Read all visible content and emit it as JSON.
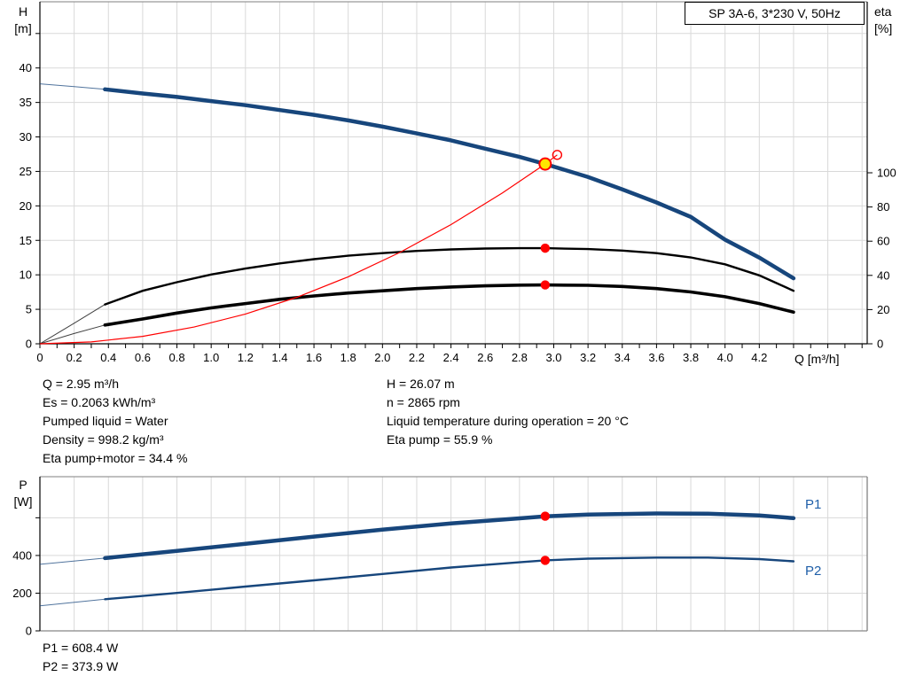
{
  "title_box": "SP 3A-6, 3*230 V, 50Hz",
  "labels": {
    "h_axis_1": "H",
    "h_axis_2": "[m]",
    "eta_axis_1": "eta",
    "eta_axis_2": "[%]",
    "q_axis": "Q [m³/h]",
    "p_axis_1": "P",
    "p_axis_2": "[W]",
    "p1_curve": "P1",
    "p2_curve": "P2"
  },
  "info": {
    "left": [
      "Q = 2.95 m³/h",
      "Es = 0.2063 kWh/m³",
      "Pumped liquid = Water",
      "Density = 998.2 kg/m³",
      "Eta pump+motor = 34.4 %"
    ],
    "right": [
      "H = 26.07 m",
      "n = 2865 rpm",
      "Liquid temperature during operation = 20 °C",
      "Eta pump = 55.9 %"
    ],
    "power": [
      "P1 = 608.4 W",
      "P2 = 373.9 W"
    ]
  },
  "colors": {
    "curve_blue": "#17467C",
    "curve_black": "#000000",
    "curve_red": "#FF0000",
    "marker_yellow": "#FFE600",
    "label_blue": "#1f5fa8",
    "grid": "#d9d9d9"
  },
  "chart_data": [
    {
      "type": "line",
      "title": "SP 3A-6, 3*230 V, 50Hz",
      "xlabel": "Q [m³/h]",
      "ylabel_left": "H [m]",
      "ylabel_right": "eta [%]",
      "x_range": [
        0,
        4.83
      ],
      "x_grid_step": 0.2,
      "x_grid_max": 4.8,
      "x_minor_step": 0.1,
      "x_label_step": 0.2,
      "x_tick_labels": [
        "0",
        "0.2",
        "0.4",
        "0.6",
        "0.8",
        "1.0",
        "1.2",
        "1.4",
        "1.6",
        "1.8",
        "2.0",
        "2.2",
        "2.4",
        "2.6",
        "2.8",
        "3.0",
        "3.2",
        "3.4",
        "3.6",
        "3.8",
        "4.0",
        "4.2"
      ],
      "y_left": {
        "range": [
          0,
          49.6
        ],
        "grid": [
          5,
          10,
          15,
          20,
          25,
          30,
          35,
          40,
          45
        ],
        "ticks": [
          0,
          5,
          10,
          15,
          20,
          25,
          30,
          35,
          40,
          45
        ],
        "label_step": 5,
        "labels": [
          "0",
          "5",
          "10",
          "15",
          "20",
          "25",
          "30",
          "35",
          "40"
        ]
      },
      "y_right": {
        "range": [
          0,
          200
        ],
        "ticks": [
          0,
          20,
          40,
          60,
          80,
          100
        ],
        "label_step": 20,
        "labels": [
          "0",
          "20",
          "40",
          "60",
          "80",
          "100"
        ]
      },
      "series": [
        {
          "name": "pump-hq-curve",
          "axis": "left",
          "color": "#17467C",
          "width": 4.5,
          "thin_until": 0.38,
          "points": [
            [
              0,
              37.7
            ],
            [
              0.2,
              37.3
            ],
            [
              0.38,
              36.9
            ],
            [
              0.6,
              36.3
            ],
            [
              0.8,
              35.8
            ],
            [
              1.0,
              35.2
            ],
            [
              1.2,
              34.6
            ],
            [
              1.4,
              33.9
            ],
            [
              1.6,
              33.2
            ],
            [
              1.8,
              32.4
            ],
            [
              2.0,
              31.5
            ],
            [
              2.2,
              30.5
            ],
            [
              2.4,
              29.5
            ],
            [
              2.6,
              28.3
            ],
            [
              2.8,
              27.1
            ],
            [
              2.95,
              26.07
            ],
            [
              3.2,
              24.2
            ],
            [
              3.4,
              22.4
            ],
            [
              3.6,
              20.5
            ],
            [
              3.8,
              18.4
            ],
            [
              4.0,
              15.1
            ],
            [
              4.2,
              12.5
            ],
            [
              4.4,
              9.5
            ]
          ]
        },
        {
          "name": "eta-pump-curve",
          "axis": "right",
          "color": "#000000",
          "width": 2.4,
          "thin_until": 0.38,
          "points": [
            [
              0,
              0
            ],
            [
              0.2,
              12
            ],
            [
              0.38,
              23
            ],
            [
              0.6,
              31
            ],
            [
              0.8,
              36
            ],
            [
              1.0,
              40.5
            ],
            [
              1.2,
              44
            ],
            [
              1.4,
              47
            ],
            [
              1.6,
              49.5
            ],
            [
              1.8,
              51.5
            ],
            [
              2.0,
              53
            ],
            [
              2.2,
              54.3
            ],
            [
              2.4,
              55.2
            ],
            [
              2.6,
              55.7
            ],
            [
              2.8,
              55.9
            ],
            [
              2.95,
              55.9
            ],
            [
              3.2,
              55.4
            ],
            [
              3.4,
              54.5
            ],
            [
              3.6,
              53
            ],
            [
              3.8,
              50.5
            ],
            [
              4.0,
              46.5
            ],
            [
              4.2,
              40
            ],
            [
              4.4,
              31
            ]
          ]
        },
        {
          "name": "eta-pump-motor-curve",
          "axis": "right",
          "color": "#000000",
          "width": 3.6,
          "thin_until": 0.38,
          "points": [
            [
              0,
              0
            ],
            [
              0.2,
              6
            ],
            [
              0.38,
              11
            ],
            [
              0.6,
              14.5
            ],
            [
              0.8,
              18
            ],
            [
              1.0,
              21
            ],
            [
              1.2,
              23.5
            ],
            [
              1.4,
              26
            ],
            [
              1.6,
              28
            ],
            [
              1.8,
              29.7
            ],
            [
              2.0,
              31
            ],
            [
              2.2,
              32.3
            ],
            [
              2.4,
              33.2
            ],
            [
              2.6,
              33.9
            ],
            [
              2.8,
              34.3
            ],
            [
              2.95,
              34.4
            ],
            [
              3.2,
              34.2
            ],
            [
              3.4,
              33.5
            ],
            [
              3.6,
              32.3
            ],
            [
              3.8,
              30.3
            ],
            [
              4.0,
              27.5
            ],
            [
              4.2,
              23.5
            ],
            [
              4.4,
              18.5
            ]
          ]
        },
        {
          "name": "system-resistance-curve",
          "axis": "left",
          "color": "#FF0000",
          "width": 1.2,
          "points": [
            [
              0,
              0
            ],
            [
              0.3,
              0.27
            ],
            [
              0.6,
              1.08
            ],
            [
              0.9,
              2.43
            ],
            [
              1.2,
              4.32
            ],
            [
              1.5,
              6.75
            ],
            [
              1.8,
              9.72
            ],
            [
              2.1,
              13.23
            ],
            [
              2.4,
              17.28
            ],
            [
              2.7,
              21.87
            ],
            [
              2.95,
              26.07
            ],
            [
              3.02,
              27.4
            ]
          ]
        }
      ],
      "markers": [
        {
          "name": "duty-point",
          "axis": "left",
          "x": 2.95,
          "y": 26.07,
          "style": "yellow"
        },
        {
          "name": "requested-duty-point",
          "axis": "left",
          "x": 3.02,
          "y": 27.4,
          "style": "open"
        },
        {
          "name": "eta-pump-point",
          "axis": "right",
          "x": 2.95,
          "y": 55.9,
          "style": "red"
        },
        {
          "name": "eta-pump-motor-point",
          "axis": "right",
          "x": 2.95,
          "y": 34.4,
          "style": "red"
        }
      ]
    },
    {
      "type": "line",
      "title": "",
      "xlabel": "",
      "ylabel_left": "P [W]",
      "x_range": [
        0,
        4.83
      ],
      "x_grid_step": 0.2,
      "x_grid_max": 4.8,
      "y_left": {
        "range": [
          0,
          818
        ],
        "grid": [
          200,
          400,
          600
        ],
        "ticks": [
          0,
          200,
          400,
          600
        ],
        "label_step": 200,
        "labels": [
          "0",
          "200",
          "400"
        ]
      },
      "series": [
        {
          "name": "p1-power-curve",
          "color": "#17467C",
          "width": 4.5,
          "thin_until": 0.38,
          "points": [
            [
              0,
              353
            ],
            [
              0.38,
              386
            ],
            [
              0.8,
              424
            ],
            [
              1.2,
              462
            ],
            [
              1.6,
              500
            ],
            [
              2.0,
              537
            ],
            [
              2.4,
              570
            ],
            [
              2.8,
              597
            ],
            [
              2.95,
              608
            ],
            [
              3.2,
              617
            ],
            [
              3.6,
              623
            ],
            [
              3.9,
              622
            ],
            [
              4.2,
              612
            ],
            [
              4.4,
              598
            ]
          ]
        },
        {
          "name": "p2-power-curve",
          "color": "#17467C",
          "width": 2.4,
          "thin_until": 0.38,
          "points": [
            [
              0,
              133
            ],
            [
              0.38,
              168
            ],
            [
              0.8,
              201
            ],
            [
              1.2,
              235
            ],
            [
              1.6,
              268
            ],
            [
              2.0,
              302
            ],
            [
              2.4,
              336
            ],
            [
              2.8,
              364
            ],
            [
              2.95,
              374
            ],
            [
              3.2,
              383
            ],
            [
              3.6,
              389
            ],
            [
              3.9,
              389
            ],
            [
              4.2,
              381
            ],
            [
              4.4,
              369
            ]
          ]
        }
      ],
      "markers": [
        {
          "name": "p1-point",
          "x": 2.95,
          "y": 608.4,
          "style": "red"
        },
        {
          "name": "p2-point",
          "x": 2.95,
          "y": 373.9,
          "style": "red"
        }
      ]
    }
  ]
}
